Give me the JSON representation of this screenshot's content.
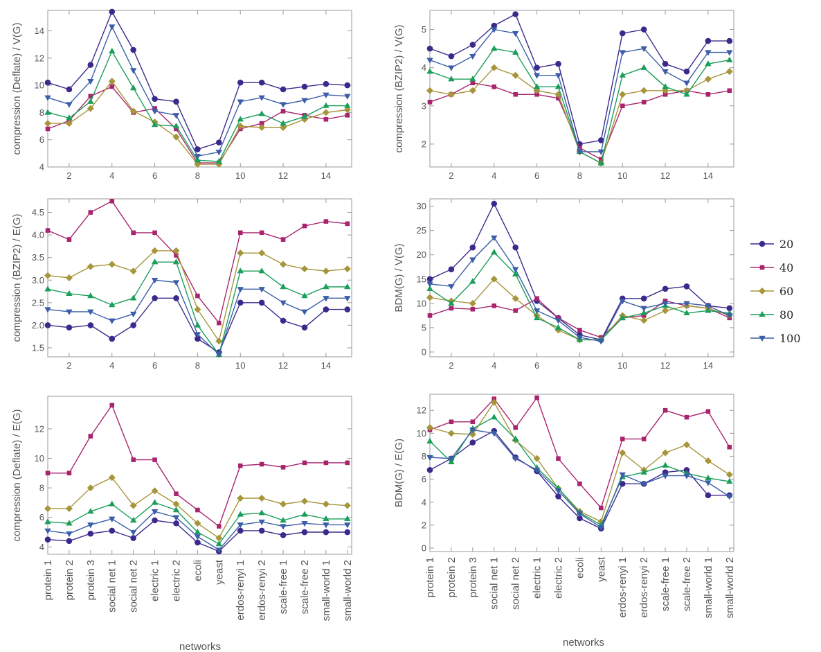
{
  "series_meta": [
    {
      "name": "20",
      "color": "#3b2a8c",
      "marker": "circle"
    },
    {
      "name": "40",
      "color": "#a8246e",
      "marker": "square"
    },
    {
      "name": "60",
      "color": "#a6953a",
      "marker": "diamond"
    },
    {
      "name": "80",
      "color": "#1a9e5a",
      "marker": "triangle-up"
    },
    {
      "name": "100",
      "color": "#3a5ea8",
      "marker": "triangle-down"
    }
  ],
  "legend": {
    "position": "right",
    "entries": [
      "20",
      "40",
      "60",
      "80",
      "100"
    ]
  },
  "shared_xlabel": "networks",
  "network_names": [
    "protein 1",
    "protein 2",
    "protein 3",
    "social net 1",
    "social net 2",
    "electric 1",
    "electric 2",
    "ecoli",
    "yeast",
    "erdos-renyi 1",
    "erdos-renyi 2",
    "scale-free 1",
    "scale-free 2",
    "small-world 1",
    "small-world 2"
  ],
  "chart_data": [
    {
      "id": "deflate-v",
      "type": "line",
      "ylabel": "compression (Deflate) / V(G)",
      "x": [
        1,
        2,
        3,
        4,
        5,
        6,
        7,
        8,
        9,
        10,
        11,
        12,
        13,
        14,
        15
      ],
      "xlim": [
        1,
        15.2
      ],
      "ylim": [
        4,
        15.5
      ],
      "xticks": [
        2,
        4,
        6,
        8,
        10,
        12,
        14
      ],
      "yticks": [
        4,
        6,
        8,
        10,
        12,
        14
      ],
      "series": [
        {
          "name": "20",
          "values": [
            10.2,
            9.7,
            11.5,
            15.4,
            12.6,
            9.0,
            8.8,
            5.3,
            5.8,
            10.2,
            10.2,
            9.7,
            9.9,
            10.1,
            10.0
          ]
        },
        {
          "name": "40",
          "values": [
            6.8,
            7.4,
            9.2,
            9.9,
            8.0,
            8.3,
            6.8,
            4.3,
            4.3,
            6.8,
            7.2,
            8.1,
            7.8,
            7.5,
            7.8
          ]
        },
        {
          "name": "60",
          "values": [
            7.2,
            7.2,
            8.3,
            10.3,
            8.1,
            7.3,
            6.2,
            4.2,
            4.2,
            7.0,
            6.9,
            6.9,
            7.5,
            8.0,
            8.2
          ]
        },
        {
          "name": "80",
          "values": [
            8.0,
            7.6,
            8.8,
            12.5,
            9.8,
            7.1,
            7.0,
            4.5,
            4.4,
            7.5,
            7.9,
            7.2,
            7.7,
            8.5,
            8.5
          ]
        },
        {
          "name": "100",
          "values": [
            9.1,
            8.6,
            10.3,
            14.3,
            11.1,
            8.1,
            7.8,
            4.8,
            5.1,
            8.8,
            9.1,
            8.6,
            8.9,
            9.3,
            9.2
          ]
        }
      ]
    },
    {
      "id": "bzip2-v",
      "type": "line",
      "ylabel": "compression (BZIP2) / V(G)",
      "x": [
        1,
        2,
        3,
        4,
        5,
        6,
        7,
        8,
        9,
        10,
        11,
        12,
        13,
        14,
        15
      ],
      "xlim": [
        1,
        15.2
      ],
      "ylim": [
        1.4,
        5.5
      ],
      "xticks": [
        2,
        4,
        6,
        8,
        10,
        12,
        14
      ],
      "yticks": [
        2,
        3,
        4,
        5
      ],
      "series": [
        {
          "name": "20",
          "values": [
            4.5,
            4.3,
            4.6,
            5.1,
            5.4,
            4.0,
            4.1,
            2.0,
            2.1,
            4.9,
            5.0,
            4.1,
            3.9,
            4.7,
            4.7
          ]
        },
        {
          "name": "40",
          "values": [
            3.1,
            3.3,
            3.6,
            3.5,
            3.3,
            3.3,
            3.2,
            1.9,
            1.6,
            3.0,
            3.1,
            3.3,
            3.4,
            3.3,
            3.4
          ]
        },
        {
          "name": "60",
          "values": [
            3.4,
            3.3,
            3.4,
            4.0,
            3.8,
            3.4,
            3.3,
            1.8,
            1.5,
            3.3,
            3.4,
            3.4,
            3.4,
            3.7,
            3.9
          ]
        },
        {
          "name": "80",
          "values": [
            3.9,
            3.7,
            3.7,
            4.5,
            4.4,
            3.5,
            3.5,
            1.8,
            1.5,
            3.8,
            4.0,
            3.5,
            3.3,
            4.1,
            4.2
          ]
        },
        {
          "name": "100",
          "values": [
            4.2,
            4.0,
            4.3,
            5.0,
            4.9,
            3.8,
            3.8,
            1.8,
            1.8,
            4.4,
            4.5,
            3.9,
            3.6,
            4.4,
            4.4
          ]
        }
      ]
    },
    {
      "id": "bzip2-e",
      "type": "line",
      "ylabel": "compression (BZIP2) / E(G)",
      "x": [
        1,
        2,
        3,
        4,
        5,
        6,
        7,
        8,
        9,
        10,
        11,
        12,
        13,
        14,
        15
      ],
      "xlim": [
        1,
        15.2
      ],
      "ylim": [
        1.3,
        4.8
      ],
      "xticks": [
        2,
        4,
        6,
        8,
        10,
        12,
        14
      ],
      "yticks": [
        1.5,
        2.0,
        2.5,
        3.0,
        3.5,
        4.0,
        4.5
      ],
      "yticklabels": [
        "1.5",
        "2.0",
        "2.5",
        "3.0",
        "3.5",
        "4.0",
        "4.5"
      ],
      "series": [
        {
          "name": "20",
          "values": [
            2.0,
            1.95,
            2.0,
            1.7,
            2.0,
            2.6,
            2.6,
            1.7,
            1.4,
            2.5,
            2.5,
            2.1,
            1.95,
            2.35,
            2.35
          ]
        },
        {
          "name": "40",
          "values": [
            4.1,
            3.9,
            4.5,
            4.75,
            4.05,
            4.05,
            3.55,
            2.65,
            2.05,
            4.05,
            4.05,
            3.9,
            4.2,
            4.3,
            4.25
          ]
        },
        {
          "name": "60",
          "values": [
            3.1,
            3.05,
            3.3,
            3.35,
            3.2,
            3.65,
            3.65,
            2.35,
            1.65,
            3.6,
            3.6,
            3.35,
            3.25,
            3.2,
            3.25
          ]
        },
        {
          "name": "80",
          "values": [
            2.8,
            2.7,
            2.65,
            2.45,
            2.6,
            3.4,
            3.4,
            2.0,
            1.35,
            3.2,
            3.2,
            2.85,
            2.65,
            2.85,
            2.85
          ]
        },
        {
          "name": "100",
          "values": [
            2.35,
            2.3,
            2.3,
            2.1,
            2.25,
            3.0,
            2.95,
            1.8,
            1.35,
            2.8,
            2.8,
            2.5,
            2.3,
            2.6,
            2.6
          ]
        }
      ]
    },
    {
      "id": "bdm-v",
      "type": "line",
      "ylabel": "BDM(G) / V(G)",
      "x": [
        1,
        2,
        3,
        4,
        5,
        6,
        7,
        8,
        9,
        10,
        11,
        12,
        13,
        14,
        15
      ],
      "xlim": [
        1,
        15.2
      ],
      "ylim": [
        -1,
        31.5
      ],
      "xticks": [
        2,
        4,
        6,
        8,
        10,
        12,
        14
      ],
      "yticks": [
        0,
        5,
        10,
        15,
        20,
        25,
        30
      ],
      "series": [
        {
          "name": "20",
          "values": [
            15.0,
            17.0,
            21.5,
            30.5,
            21.5,
            10.5,
            7.0,
            3.5,
            2.5,
            11.0,
            11.0,
            13.0,
            13.5,
            9.5,
            9.0
          ]
        },
        {
          "name": "40",
          "values": [
            7.5,
            9.0,
            8.8,
            9.5,
            8.5,
            11.0,
            7.0,
            4.5,
            3.0,
            7.0,
            7.5,
            10.5,
            9.5,
            9.0,
            7.0
          ]
        },
        {
          "name": "60",
          "values": [
            11.2,
            10.5,
            10.0,
            15.0,
            11.0,
            7.5,
            4.5,
            2.5,
            2.5,
            7.5,
            6.5,
            8.5,
            9.5,
            9.0,
            7.5
          ]
        },
        {
          "name": "80",
          "values": [
            13.0,
            10.0,
            14.5,
            20.5,
            16.0,
            7.0,
            5.0,
            2.5,
            2.5,
            7.0,
            8.0,
            9.5,
            8.0,
            8.5,
            8.0
          ]
        },
        {
          "name": "100",
          "values": [
            14.0,
            13.5,
            19.0,
            23.5,
            17.0,
            8.5,
            6.5,
            3.0,
            2.2,
            10.5,
            9.0,
            10.0,
            10.0,
            9.5,
            7.5
          ]
        }
      ]
    },
    {
      "id": "deflate-e",
      "type": "line",
      "ylabel": "compression (Deflate) / E(G)",
      "categories": [
        "protein 1",
        "protein 2",
        "protein 3",
        "social net 1",
        "social net 2",
        "electric 1",
        "electric 2",
        "ecoli",
        "yeast",
        "erdos-renyi 1",
        "erdos-renyi 2",
        "scale-free 1",
        "scale-free 2",
        "small-world 1",
        "small-world 2"
      ],
      "xlim": [
        1,
        15.2
      ],
      "ylim": [
        3.5,
        14.2
      ],
      "yticks": [
        4,
        6,
        8,
        10,
        12
      ],
      "series": [
        {
          "name": "20",
          "values": [
            4.5,
            4.4,
            4.9,
            5.1,
            4.6,
            5.8,
            5.6,
            4.3,
            3.7,
            5.1,
            5.1,
            4.8,
            5.0,
            5.0,
            5.0
          ]
        },
        {
          "name": "40",
          "values": [
            9.0,
            9.0,
            11.5,
            13.6,
            9.9,
            9.9,
            7.6,
            6.5,
            5.4,
            9.5,
            9.6,
            9.4,
            9.7,
            9.7,
            9.7
          ]
        },
        {
          "name": "60",
          "values": [
            6.6,
            6.6,
            8.0,
            8.7,
            6.8,
            7.8,
            6.9,
            5.6,
            4.6,
            7.3,
            7.3,
            6.9,
            7.1,
            6.9,
            6.8
          ]
        },
        {
          "name": "80",
          "values": [
            5.7,
            5.6,
            6.4,
            6.9,
            5.8,
            7.0,
            6.5,
            5.0,
            4.2,
            6.2,
            6.3,
            5.8,
            6.2,
            5.9,
            5.9
          ]
        },
        {
          "name": "100",
          "values": [
            5.1,
            4.9,
            5.5,
            5.9,
            5.0,
            6.4,
            6.0,
            4.7,
            3.8,
            5.5,
            5.7,
            5.4,
            5.6,
            5.5,
            5.5
          ]
        }
      ]
    },
    {
      "id": "bdm-e",
      "type": "line",
      "ylabel": "BDM(G) / E(G)",
      "categories": [
        "protein 1",
        "protein 2",
        "protein 3",
        "social net 1",
        "social net 2",
        "electric 1",
        "electric 2",
        "ecoli",
        "yeast",
        "erdos-renyi 1",
        "erdos-renyi 2",
        "scale-free 1",
        "scale-free 2",
        "small-world 1",
        "small-world 2"
      ],
      "xlim": [
        1,
        15.2
      ],
      "ylim": [
        -0.3,
        13.4
      ],
      "yticks": [
        0,
        2,
        4,
        6,
        8,
        10,
        12
      ],
      "series": [
        {
          "name": "20",
          "values": [
            6.8,
            7.8,
            9.2,
            10.2,
            7.9,
            6.7,
            4.5,
            2.6,
            1.7,
            5.6,
            5.6,
            6.6,
            6.8,
            4.6,
            4.6
          ]
        },
        {
          "name": "40",
          "values": [
            10.3,
            11.0,
            11.0,
            13.0,
            10.5,
            13.1,
            7.8,
            5.6,
            3.5,
            9.5,
            9.5,
            12.0,
            11.4,
            11.9,
            8.8
          ]
        },
        {
          "name": "60",
          "values": [
            10.5,
            10.0,
            9.9,
            12.7,
            9.4,
            7.8,
            5.2,
            3.2,
            2.3,
            8.3,
            6.8,
            8.3,
            9.0,
            7.6,
            6.4
          ]
        },
        {
          "name": "80",
          "values": [
            9.3,
            7.5,
            10.4,
            11.4,
            9.5,
            7.0,
            5.2,
            3.1,
            2.0,
            6.2,
            6.6,
            7.2,
            6.5,
            6.1,
            5.8
          ]
        },
        {
          "name": "100",
          "values": [
            7.9,
            7.8,
            10.3,
            10.0,
            7.8,
            6.8,
            5.0,
            3.0,
            1.8,
            6.4,
            5.6,
            6.3,
            6.3,
            5.7,
            4.5
          ]
        }
      ]
    }
  ]
}
